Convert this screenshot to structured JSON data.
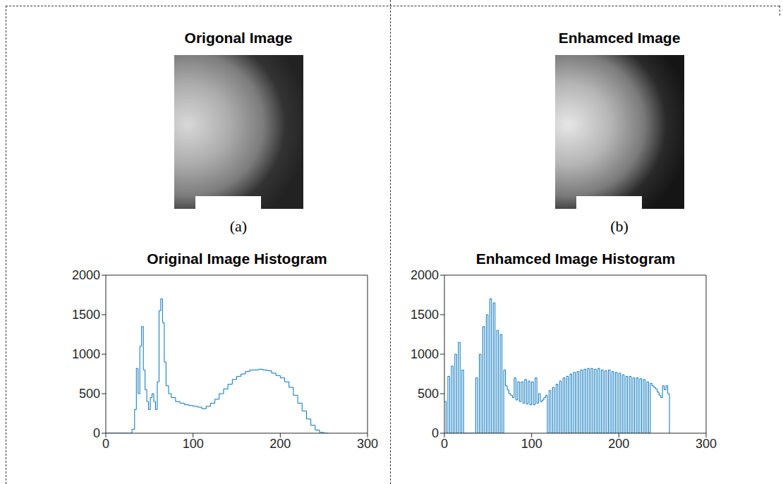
{
  "images": [
    {
      "title": "Origonal Image",
      "label": "(a)"
    },
    {
      "title": "Enhamced Image",
      "label": "(b)"
    }
  ],
  "chart_data": [
    {
      "type": "line",
      "title": "Original Image Histogram",
      "x": [
        0,
        25,
        30,
        33,
        35,
        37,
        39,
        41,
        43,
        45,
        47,
        49,
        51,
        53,
        55,
        57,
        59,
        61,
        63,
        65,
        67,
        69,
        72,
        75,
        80,
        85,
        90,
        95,
        100,
        105,
        110,
        115,
        120,
        125,
        130,
        135,
        140,
        145,
        150,
        155,
        160,
        165,
        170,
        175,
        180,
        185,
        190,
        195,
        200,
        205,
        210,
        215,
        220,
        225,
        230,
        235,
        240,
        245,
        250,
        255
      ],
      "values": [
        0,
        0,
        50,
        300,
        820,
        500,
        1100,
        1350,
        800,
        550,
        400,
        300,
        450,
        500,
        400,
        300,
        650,
        1550,
        1700,
        1400,
        900,
        600,
        500,
        450,
        400,
        380,
        360,
        350,
        340,
        330,
        310,
        340,
        380,
        430,
        500,
        560,
        620,
        680,
        720,
        750,
        780,
        800,
        800,
        810,
        800,
        790,
        760,
        730,
        700,
        650,
        580,
        480,
        380,
        280,
        180,
        100,
        40,
        10,
        0,
        0
      ],
      "color": "#0072bd",
      "line_style": "step",
      "xlim": [
        0,
        300
      ],
      "ylim": [
        0,
        2000
      ],
      "xticks": [
        0,
        100,
        200,
        300
      ],
      "yticks": [
        0,
        500,
        1000,
        1500,
        2000
      ]
    },
    {
      "type": "line",
      "title": "Enhamced Image Histogram",
      "x": [
        0,
        2,
        4,
        6,
        8,
        10,
        12,
        14,
        16,
        18,
        20,
        22,
        24,
        26,
        28,
        30,
        32,
        34,
        36,
        38,
        40,
        42,
        44,
        46,
        48,
        50,
        52,
        54,
        56,
        58,
        60,
        62,
        64,
        66,
        68,
        70,
        72,
        74,
        76,
        78,
        80,
        82,
        84,
        86,
        88,
        90,
        92,
        94,
        96,
        98,
        100,
        102,
        104,
        106,
        108,
        110,
        112,
        114,
        116,
        118,
        120,
        122,
        124,
        126,
        128,
        130,
        132,
        134,
        136,
        138,
        140,
        142,
        144,
        146,
        148,
        150,
        152,
        154,
        156,
        158,
        160,
        162,
        164,
        166,
        168,
        170,
        172,
        174,
        176,
        178,
        180,
        182,
        184,
        186,
        188,
        190,
        192,
        194,
        196,
        198,
        200,
        202,
        204,
        206,
        208,
        210,
        212,
        214,
        216,
        218,
        220,
        222,
        224,
        226,
        228,
        230,
        232,
        234,
        236,
        238,
        240,
        242,
        244,
        246,
        248,
        250,
        252,
        254,
        256,
        258
      ],
      "values": [
        400,
        0,
        720,
        0,
        850,
        0,
        1000,
        0,
        1150,
        0,
        800,
        0,
        0,
        0,
        0,
        0,
        0,
        0,
        700,
        0,
        1000,
        0,
        1350,
        0,
        1500,
        0,
        1700,
        0,
        1650,
        0,
        1300,
        0,
        1250,
        0,
        800,
        600,
        550,
        500,
        480,
        450,
        700,
        420,
        650,
        400,
        650,
        380,
        680,
        370,
        660,
        360,
        650,
        360,
        700,
        380,
        500,
        400,
        420,
        450,
        480,
        0,
        540,
        0,
        580,
        0,
        620,
        0,
        660,
        0,
        700,
        0,
        720,
        0,
        750,
        0,
        770,
        0,
        780,
        0,
        800,
        0,
        810,
        0,
        820,
        0,
        820,
        0,
        810,
        0,
        820,
        0,
        800,
        0,
        790,
        0,
        800,
        0,
        780,
        0,
        770,
        0,
        760,
        0,
        740,
        0,
        720,
        0,
        720,
        0,
        700,
        0,
        700,
        0,
        690,
        0,
        680,
        0,
        650,
        0,
        630,
        600,
        580,
        560,
        520,
        480,
        450,
        600,
        550,
        600,
        500,
        0
      ],
      "color": "#0072bd",
      "line_style": "step",
      "xlim": [
        0,
        300
      ],
      "ylim": [
        0,
        2000
      ],
      "xticks": [
        0,
        100,
        200,
        300
      ],
      "yticks": [
        0,
        500,
        1000,
        1500,
        2000
      ]
    }
  ]
}
